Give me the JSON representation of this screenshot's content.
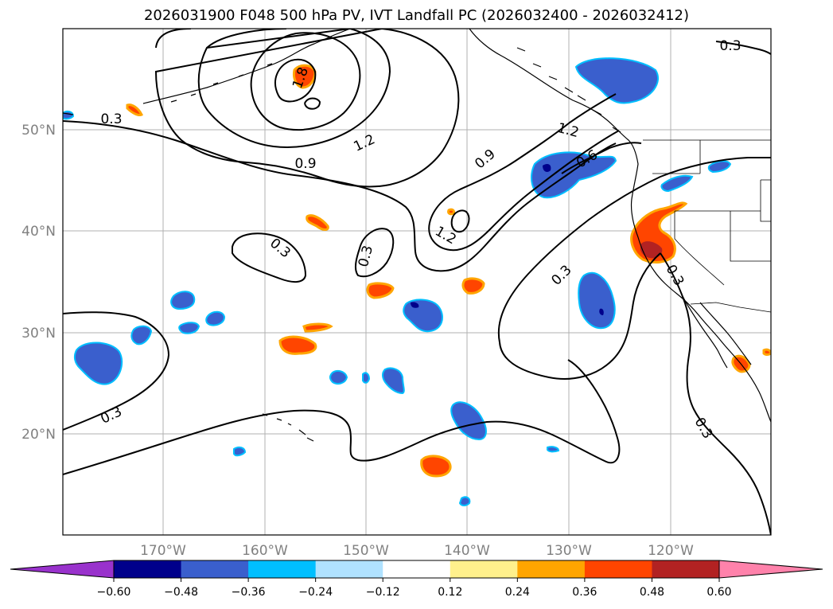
{
  "title": "2026031900 F048 500 hPa PV, IVT Landfall PC (2026032400 - 2026032412)",
  "map": {
    "lon_labels": [
      "170°W",
      "160°W",
      "150°W",
      "140°W",
      "130°W",
      "120°W"
    ],
    "lat_labels": [
      "50°N",
      "40°N",
      "30°N",
      "20°N"
    ],
    "contour_labels": [
      {
        "text": "0.3",
        "rot": 0
      },
      {
        "text": "1.8",
        "rot": -70
      },
      {
        "text": "1.2",
        "rot": -25
      },
      {
        "text": "0.9",
        "rot": 0
      },
      {
        "text": "0.3",
        "rot": 0
      },
      {
        "text": "0.9",
        "rot": -40
      },
      {
        "text": "1.2",
        "rot": 15
      },
      {
        "text": "0.6",
        "rot": -30
      },
      {
        "text": "1.2",
        "rot": 30
      },
      {
        "text": "0.3",
        "rot": 40
      },
      {
        "text": "0.3",
        "rot": -75
      },
      {
        "text": "0.3",
        "rot": -45
      },
      {
        "text": "0.3",
        "rot": 60
      },
      {
        "text": "0.3",
        "rot": -25
      },
      {
        "text": "0.3",
        "rot": 60
      }
    ]
  },
  "colorbar": {
    "ticks": [
      "−0.60",
      "−0.48",
      "−0.36",
      "−0.24",
      "−0.12",
      "0.12",
      "0.24",
      "0.36",
      "0.48",
      "0.60"
    ],
    "colors": [
      "#9932cc",
      "#00008b",
      "#3a5fcd",
      "#00bfff",
      "#b0e2ff",
      "#ffffff",
      "#fff08c",
      "#ffa500",
      "#ff4500",
      "#b22222",
      "#ff82ab"
    ]
  },
  "colors": {
    "land_outline": "#000000",
    "grid": "#b0b0b0"
  }
}
